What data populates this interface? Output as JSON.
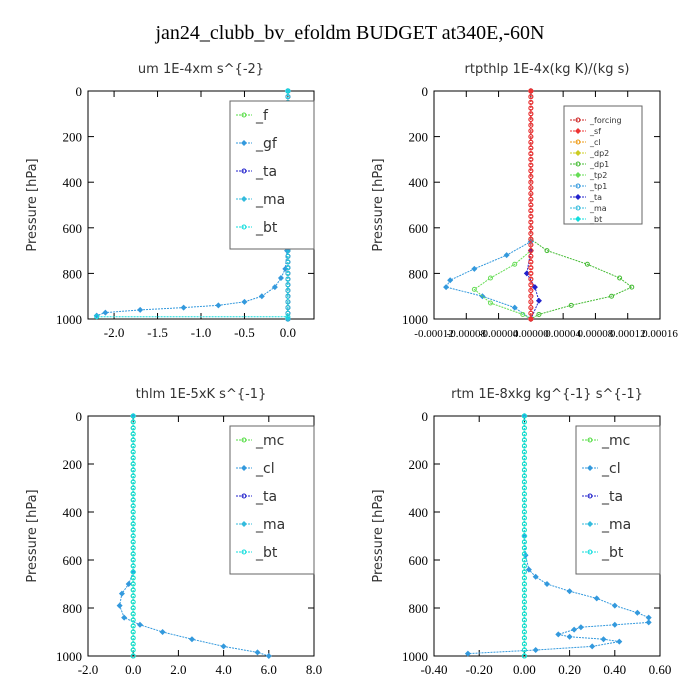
{
  "page": {
    "title": "jan24_clubb_bv_efoldm  BUDGET at340E,-60N"
  },
  "chart_data": [
    {
      "id": "um",
      "type": "line",
      "title": "um   1E-4xm s^{-2}",
      "xlabel": "",
      "ylabel": "Pressure [hPa]",
      "xlim": [
        -2.3,
        0.3
      ],
      "ylim": [
        1000,
        0
      ],
      "xticks": [
        -2.0,
        -1.5,
        -1.0,
        -0.5,
        0.0
      ],
      "xtick_labels": [
        "-2.0",
        "-1.5",
        "-1.0",
        "-0.5",
        "0.0"
      ],
      "yticks": [
        0,
        200,
        400,
        600,
        800,
        1000
      ],
      "ytick_labels": [
        "0",
        "200",
        "400",
        "600",
        "800",
        "1000"
      ],
      "legend": {
        "placement": "top-right",
        "size": "large",
        "entries": [
          {
            "name": "_f",
            "color": "#55dd44"
          },
          {
            "name": "_gf",
            "color": "#3399dd"
          },
          {
            "name": "_ta",
            "color": "#2222cc"
          },
          {
            "name": "_ma",
            "color": "#33bbdd"
          },
          {
            "name": "_bt",
            "color": "#11dddd"
          }
        ]
      },
      "series": [
        {
          "color": "#55dd44",
          "values": [
            [
              0.0,
              0
            ],
            [
              0.0,
              1000
            ]
          ]
        },
        {
          "color": "#3399dd",
          "values": [
            [
              0.0,
              0
            ],
            [
              0.0,
              600
            ],
            [
              -0.01,
              700
            ],
            [
              -0.03,
              780
            ],
            [
              -0.08,
              820
            ],
            [
              -0.15,
              860
            ],
            [
              -0.3,
              900
            ],
            [
              -0.5,
              925
            ],
            [
              -0.8,
              940
            ],
            [
              -1.2,
              950
            ],
            [
              -1.7,
              960
            ],
            [
              -2.1,
              972
            ],
            [
              -2.2,
              985
            ]
          ]
        },
        {
          "color": "#2222cc",
          "values": [
            [
              0.0,
              0
            ],
            [
              0.0,
              1000
            ]
          ]
        },
        {
          "color": "#33bbdd",
          "values": [
            [
              0.0,
              0
            ],
            [
              0.0,
              1000
            ]
          ]
        },
        {
          "color": "#11dddd",
          "values": [
            [
              0.0,
              0
            ],
            [
              0.0,
              990
            ],
            [
              -2.2,
              990
            ]
          ]
        }
      ]
    },
    {
      "id": "rtpthlp",
      "type": "line",
      "title": "rtpthlp   1E-4x(kg K)/(kg s)",
      "xlabel": "",
      "ylabel": "Pressure [hPa]",
      "xlim": [
        -0.00012,
        0.00016
      ],
      "ylim": [
        1000,
        0
      ],
      "xticks": [
        -0.00012,
        -8e-05,
        -4e-05,
        0.0,
        4e-05,
        8e-05,
        0.00012,
        0.00016
      ],
      "xtick_labels": [
        "-0.00012",
        "-0.00008",
        "-0.00004",
        "0.00000",
        "0.00004",
        "0.00008",
        "0.00012",
        "0.00016"
      ],
      "yticks": [
        0,
        200,
        400,
        600,
        800,
        1000
      ],
      "ytick_labels": [
        "0",
        "200",
        "400",
        "600",
        "800",
        "1000"
      ],
      "legend": {
        "placement": "top-right",
        "size": "small",
        "entries": [
          {
            "name": "_forcing",
            "color": "#cc2222"
          },
          {
            "name": "_sf",
            "color": "#ee3333"
          },
          {
            "name": "_cl",
            "color": "#ee9911"
          },
          {
            "name": "_dp2",
            "color": "#cccc22"
          },
          {
            "name": "_dp1",
            "color": "#44bb33"
          },
          {
            "name": "_tp2",
            "color": "#66dd55"
          },
          {
            "name": "_tp1",
            "color": "#3399dd"
          },
          {
            "name": "_ta",
            "color": "#2222cc"
          },
          {
            "name": "_ma",
            "color": "#33bbdd"
          },
          {
            "name": "_bt",
            "color": "#11dddd"
          }
        ]
      },
      "series": [
        {
          "color": "#44bb33",
          "values": [
            [
              0.0,
              0
            ],
            [
              0.0,
              650
            ],
            [
              2e-05,
              700
            ],
            [
              7e-05,
              760
            ],
            [
              0.00011,
              820
            ],
            [
              0.000125,
              860
            ],
            [
              0.0001,
              900
            ],
            [
              5e-05,
              940
            ],
            [
              1e-05,
              980
            ],
            [
              0.0,
              1000
            ]
          ]
        },
        {
          "color": "#3399dd",
          "values": [
            [
              0.0,
              0
            ],
            [
              0.0,
              660
            ],
            [
              -3e-05,
              720
            ],
            [
              -7e-05,
              780
            ],
            [
              -0.0001,
              830
            ],
            [
              -0.000105,
              860
            ],
            [
              -6e-05,
              900
            ],
            [
              -2e-05,
              950
            ],
            [
              0.0,
              1000
            ]
          ]
        },
        {
          "color": "#66dd55",
          "values": [
            [
              0.0,
              0
            ],
            [
              0.0,
              700
            ],
            [
              -2e-05,
              760
            ],
            [
              -5e-05,
              820
            ],
            [
              -7e-05,
              870
            ],
            [
              -5e-05,
              930
            ],
            [
              -1e-05,
              980
            ],
            [
              0.0,
              1000
            ]
          ]
        },
        {
          "color": "#2222cc",
          "values": [
            [
              0.0,
              0
            ],
            [
              0.0,
              700
            ],
            [
              -5e-06,
              800
            ],
            [
              5e-06,
              860
            ],
            [
              1e-05,
              920
            ],
            [
              0.0,
              1000
            ]
          ]
        },
        {
          "color": "#cc2222",
          "values": [
            [
              0.0,
              0
            ],
            [
              0.0,
              1000
            ]
          ]
        },
        {
          "color": "#ee3333",
          "values": [
            [
              0.0,
              0
            ],
            [
              0.0,
              1000
            ]
          ]
        }
      ]
    },
    {
      "id": "thlm",
      "type": "line",
      "title": "thlm   1E-5xK s^{-1}",
      "xlabel": "",
      "ylabel": "Pressure [hPa]",
      "xlim": [
        -2.0,
        8.0
      ],
      "ylim": [
        1000,
        0
      ],
      "xticks": [
        -2.0,
        0.0,
        2.0,
        4.0,
        6.0,
        8.0
      ],
      "xtick_labels": [
        "-2.0",
        "0.0",
        "2.0",
        "4.0",
        "6.0",
        "8.0"
      ],
      "yticks": [
        0,
        200,
        400,
        600,
        800,
        1000
      ],
      "ytick_labels": [
        "0",
        "200",
        "400",
        "600",
        "800",
        "1000"
      ],
      "legend": {
        "placement": "top-right",
        "size": "large",
        "entries": [
          {
            "name": "_mc",
            "color": "#55dd44"
          },
          {
            "name": "_cl",
            "color": "#3399dd"
          },
          {
            "name": "_ta",
            "color": "#2222cc"
          },
          {
            "name": "_ma",
            "color": "#33bbdd"
          },
          {
            "name": "_bt",
            "color": "#11dddd"
          }
        ]
      },
      "series": [
        {
          "color": "#55dd44",
          "values": [
            [
              0.0,
              0
            ],
            [
              0.0,
              1000
            ]
          ]
        },
        {
          "color": "#3399dd",
          "values": [
            [
              0.0,
              0
            ],
            [
              0.0,
              650
            ],
            [
              -0.2,
              700
            ],
            [
              -0.5,
              740
            ],
            [
              -0.6,
              790
            ],
            [
              -0.4,
              840
            ],
            [
              0.3,
              870
            ],
            [
              1.3,
              900
            ],
            [
              2.6,
              930
            ],
            [
              4.0,
              960
            ],
            [
              5.5,
              985
            ],
            [
              6.0,
              1000
            ]
          ]
        },
        {
          "color": "#11dddd",
          "values": [
            [
              0.0,
              0
            ],
            [
              0.0,
              1000
            ]
          ]
        }
      ]
    },
    {
      "id": "rtm",
      "type": "line",
      "title": "rtm   1E-8xkg kg^{-1} s^{-1}",
      "xlabel": "",
      "ylabel": "Pressure [hPa]",
      "xlim": [
        -0.4,
        0.6
      ],
      "ylim": [
        1000,
        0
      ],
      "xticks": [
        -0.4,
        -0.2,
        0.0,
        0.2,
        0.4,
        0.6
      ],
      "xtick_labels": [
        "-0.40",
        "-0.20",
        "0.00",
        "0.20",
        "0.40",
        "0.60"
      ],
      "yticks": [
        0,
        200,
        400,
        600,
        800,
        1000
      ],
      "ytick_labels": [
        "0",
        "200",
        "400",
        "600",
        "800",
        "1000"
      ],
      "legend": {
        "placement": "top-right",
        "size": "large",
        "entries": [
          {
            "name": "_mc",
            "color": "#55dd44"
          },
          {
            "name": "_cl",
            "color": "#3399dd"
          },
          {
            "name": "_ta",
            "color": "#2222cc"
          },
          {
            "name": "_ma",
            "color": "#33bbdd"
          },
          {
            "name": "_bt",
            "color": "#11dddd"
          }
        ]
      },
      "series": [
        {
          "color": "#55dd44",
          "values": [
            [
              0.0,
              0
            ],
            [
              0.0,
              1000
            ]
          ]
        },
        {
          "color": "#3399dd",
          "values": [
            [
              0.0,
              0
            ],
            [
              0.0,
              500
            ],
            [
              0.005,
              580
            ],
            [
              0.02,
              640
            ],
            [
              0.05,
              670
            ],
            [
              0.1,
              700
            ],
            [
              0.2,
              730
            ],
            [
              0.32,
              760
            ],
            [
              0.4,
              790
            ],
            [
              0.5,
              820
            ],
            [
              0.55,
              840
            ],
            [
              0.55,
              860
            ],
            [
              0.4,
              870
            ],
            [
              0.25,
              880
            ],
            [
              0.22,
              890
            ],
            [
              0.15,
              910
            ],
            [
              0.2,
              920
            ],
            [
              0.35,
              930
            ],
            [
              0.42,
              940
            ],
            [
              0.3,
              960
            ],
            [
              0.05,
              975
            ],
            [
              -0.25,
              990
            ]
          ]
        },
        {
          "color": "#11dddd",
          "values": [
            [
              0.0,
              0
            ],
            [
              0.0,
              1000
            ]
          ]
        }
      ]
    }
  ]
}
